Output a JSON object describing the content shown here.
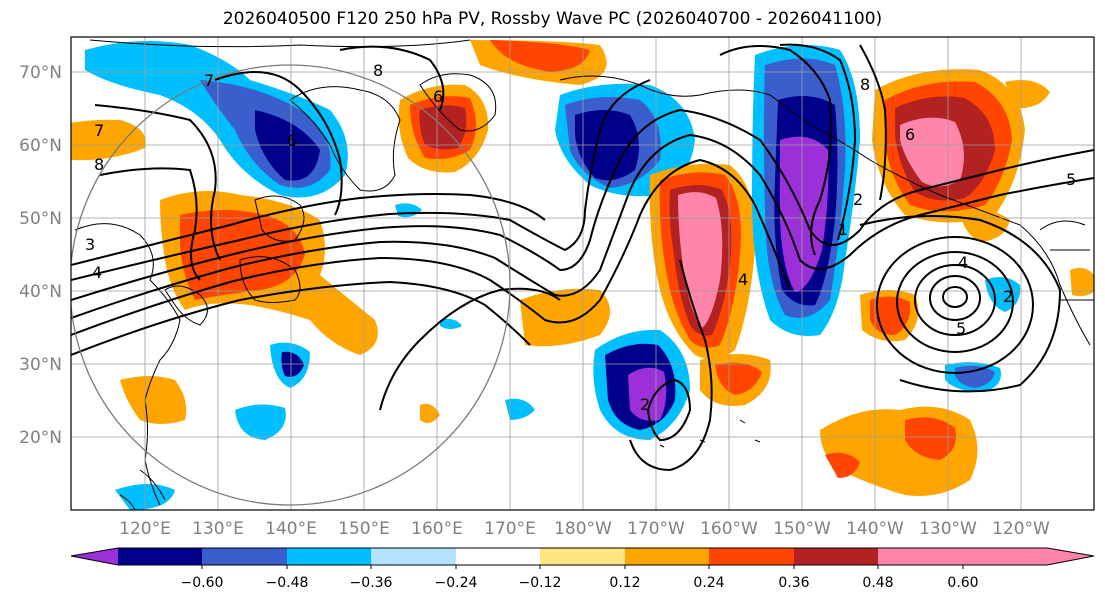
{
  "title": "2026040500 F120 250 hPa PV, Rossby Wave PC (2026040700 - 2026041100)",
  "latitude_ticks": [
    "70°N",
    "60°N",
    "50°N",
    "40°N",
    "30°N",
    "20°N"
  ],
  "longitude_ticks": [
    "120°E",
    "130°E",
    "140°E",
    "150°E",
    "160°E",
    "170°E",
    "180°W",
    "170°W",
    "160°W",
    "150°W",
    "140°W",
    "130°W",
    "120°W"
  ],
  "colorbar": {
    "tick_labels": [
      "−0.60",
      "−0.48",
      "−0.36",
      "−0.24",
      "−0.12",
      "0.12",
      "0.24",
      "0.36",
      "0.48",
      "0.60"
    ],
    "colors": [
      "#9b30d9",
      "#00008b",
      "#3a5fcd",
      "#00bfff",
      "#b3e2ff",
      "#ffffff",
      "#ffe680",
      "#ffa500",
      "#ff4500",
      "#b22222",
      "#ff85aa"
    ]
  },
  "contour_labels": [
    "7",
    "7",
    "8",
    "4",
    "3",
    "6",
    "8",
    "2",
    "1",
    "5",
    "4",
    "5",
    "6",
    "6",
    "2",
    "4",
    "2",
    "8"
  ]
}
